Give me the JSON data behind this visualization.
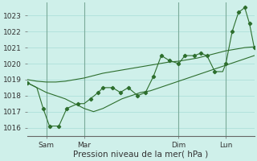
{
  "xlabel": "Pression niveau de la mer( hPa )",
  "bg_color": "#cff0ea",
  "line_color": "#2d6e2d",
  "grid_color": "#a8ddd6",
  "vline_color": "#7aaa99",
  "ylim": [
    1015.5,
    1023.8
  ],
  "yticks": [
    1016,
    1017,
    1018,
    1019,
    1020,
    1021,
    1022,
    1023
  ],
  "xlim": [
    0,
    288
  ],
  "xtick_positions": [
    24,
    72,
    192,
    252
  ],
  "xtick_labels": [
    "Sam",
    "Mar",
    "Dim",
    "Lun"
  ],
  "vline_positions": [
    24,
    72,
    192,
    252
  ],
  "line1_x": [
    0,
    12,
    24,
    36,
    48,
    60,
    72,
    84,
    96,
    108,
    120,
    132,
    144,
    156,
    168,
    180,
    192,
    204,
    216,
    228,
    240,
    252,
    264,
    276,
    288
  ],
  "line1_y": [
    1019.0,
    1018.9,
    1018.85,
    1018.85,
    1018.9,
    1019.0,
    1019.1,
    1019.25,
    1019.4,
    1019.5,
    1019.6,
    1019.7,
    1019.8,
    1019.9,
    1020.0,
    1020.1,
    1020.15,
    1020.25,
    1020.35,
    1020.5,
    1020.65,
    1020.8,
    1020.9,
    1021.0,
    1021.05
  ],
  "line2_x": [
    0,
    12,
    24,
    36,
    48,
    60,
    72,
    84,
    96,
    108,
    120,
    132,
    144,
    156,
    168,
    180,
    192,
    204,
    216,
    228,
    240,
    252,
    264,
    276,
    288
  ],
  "line2_y": [
    1018.8,
    1018.5,
    1018.2,
    1018.0,
    1017.8,
    1017.5,
    1017.2,
    1017.0,
    1017.2,
    1017.5,
    1017.8,
    1018.0,
    1018.2,
    1018.3,
    1018.5,
    1018.7,
    1018.9,
    1019.1,
    1019.3,
    1019.5,
    1019.7,
    1019.9,
    1020.1,
    1020.3,
    1020.5
  ],
  "line3_x": [
    0,
    12,
    20,
    28,
    40,
    50,
    64,
    72,
    80,
    90,
    96,
    108,
    118,
    128,
    140,
    150,
    160,
    170,
    180,
    192,
    200,
    212,
    220,
    228,
    238,
    248,
    252,
    260,
    268,
    276,
    282,
    288
  ],
  "line3_y": [
    1018.8,
    1018.5,
    1017.2,
    1016.1,
    1016.1,
    1017.2,
    1017.5,
    1017.5,
    1017.8,
    1018.2,
    1018.5,
    1018.5,
    1018.2,
    1018.5,
    1018.0,
    1018.2,
    1019.2,
    1020.5,
    1020.2,
    1020.0,
    1020.5,
    1020.5,
    1020.65,
    1020.5,
    1019.5,
    1019.5,
    1020.0,
    1022.0,
    1023.2,
    1023.5,
    1022.5,
    1021.0
  ],
  "markers3_x": [
    0,
    20,
    28,
    40,
    50,
    64,
    80,
    90,
    96,
    108,
    118,
    128,
    140,
    150,
    160,
    170,
    180,
    192,
    200,
    212,
    220,
    228,
    238,
    252,
    260,
    268,
    276,
    282,
    288
  ],
  "markers3_y": [
    1018.8,
    1017.2,
    1016.1,
    1016.1,
    1017.2,
    1017.5,
    1017.8,
    1018.2,
    1018.5,
    1018.5,
    1018.2,
    1018.5,
    1018.0,
    1018.2,
    1019.2,
    1020.5,
    1020.2,
    1020.0,
    1020.5,
    1020.5,
    1020.65,
    1020.5,
    1019.5,
    1020.0,
    1022.0,
    1023.2,
    1023.5,
    1022.5,
    1021.0
  ],
  "tick_fontsize": 6.5,
  "xlabel_fontsize": 7.5
}
